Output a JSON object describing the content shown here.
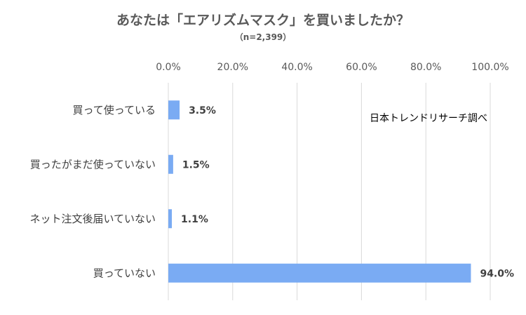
{
  "chart_data": {
    "type": "bar",
    "orientation": "horizontal",
    "title": "あなたは「エアリズムマスク」を買いましたか？",
    "subtitle": "（n=2,399）",
    "categories": [
      "買って使っている",
      "買ったがまだ使っていない",
      "ネット注文後届いていない",
      "買っていない"
    ],
    "values": [
      3.5,
      1.5,
      1.1,
      94.0
    ],
    "data_labels": [
      "3.5%",
      "1.5%",
      "1.1%",
      "94.0%"
    ],
    "xlim": [
      0,
      100
    ],
    "x_ticks": [
      0,
      20,
      40,
      60,
      80,
      100
    ],
    "x_tick_labels": [
      "0.0%",
      "20.0%",
      "40.0%",
      "60.0%",
      "80.0%",
      "100.0%"
    ],
    "x_axis_position": "top",
    "grid": true,
    "bar_color": "#7aabf3",
    "annotation": "日本トレンドリサーチ調べ"
  }
}
